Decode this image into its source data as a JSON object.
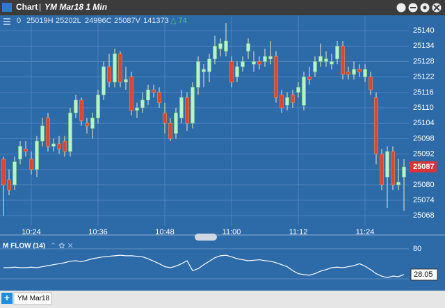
{
  "window_title": "Chart",
  "tab": "YM Mar18",
  "chart_data": [
    {
      "type": "candlestick",
      "title": "YM Mar18 1 Min",
      "info": [
        "0",
        "25019H",
        "25202L",
        "24996C",
        "25087V",
        "141373"
      ],
      "change": "△ 74",
      "up_color": "#b9f2c9",
      "down_color": "#e0452b",
      "last_color": "#d9343a",
      "categories": [
        null,
        null,
        null,
        null,
        null,
        "10:24",
        null,
        null,
        null,
        null,
        null,
        null,
        null,
        null,
        null,
        null,
        null,
        "10:36",
        null,
        null,
        null,
        null,
        null,
        null,
        null,
        null,
        null,
        null,
        null,
        "10:48",
        null,
        null,
        null,
        null,
        null,
        null,
        null,
        null,
        null,
        null,
        null,
        "11:00",
        null,
        null,
        null,
        null,
        null,
        null,
        null,
        null,
        null,
        null,
        null,
        "11:12",
        null,
        null,
        null,
        null,
        null,
        null,
        null,
        null,
        null,
        null,
        null,
        "11:24",
        null,
        null,
        null,
        null,
        null,
        null,
        null
      ],
      "open": [
        25090,
        25082,
        25080,
        25090,
        25094,
        25090,
        25086,
        25097,
        25106,
        25095,
        25096,
        25097,
        25093,
        25108,
        25113,
        25104,
        25102,
        25106,
        25115,
        25126,
        25120,
        25131,
        25120,
        25122,
        25109,
        25110,
        25113,
        25117,
        25116,
        25108,
        25104,
        25100,
        25106,
        25114,
        25104,
        25118,
        25124,
        25124,
        25129,
        25133,
        25132,
        25128,
        25122,
        25126,
        25132,
        25127,
        25128,
        25128,
        25129,
        25130,
        25115,
        25111,
        25115,
        25116,
        25111,
        25122,
        25124,
        25128,
        25128,
        25127,
        25129,
        25134,
        25124,
        25123,
        25125,
        25122,
        25122,
        25114,
        25092,
        25083,
        25093,
        25080,
        25083
      ],
      "high": [
        25091,
        25086,
        25091,
        25097,
        25097,
        25093,
        25099,
        25106,
        25108,
        25098,
        25099,
        25099,
        25110,
        25115,
        25114,
        25106,
        25108,
        25117,
        25128,
        25131,
        25133,
        25132,
        25126,
        25124,
        25112,
        25116,
        25119,
        25119,
        25118,
        25112,
        25106,
        25110,
        25117,
        25116,
        25120,
        25130,
        25127,
        25131,
        25138,
        25137,
        25143,
        25130,
        25128,
        25130,
        25137,
        25132,
        25130,
        25133,
        25136,
        25132,
        25117,
        25116,
        25117,
        25120,
        25124,
        25126,
        25130,
        25135,
        25132,
        25131,
        25136,
        25136,
        25126,
        25128,
        25127,
        25127,
        25124,
        25116,
        25094,
        25095,
        25095,
        25090,
        25090
      ],
      "low": [
        25068,
        25076,
        25078,
        25088,
        25091,
        25084,
        25083,
        25095,
        25093,
        25093,
        25092,
        25091,
        25091,
        25106,
        25103,
        25100,
        25098,
        25104,
        25113,
        25118,
        25118,
        25118,
        25117,
        25107,
        25106,
        25108,
        25111,
        25114,
        25110,
        25100,
        25097,
        25098,
        25104,
        25101,
        25102,
        25115,
        25118,
        25120,
        25127,
        25130,
        25130,
        25118,
        25120,
        25124,
        25129,
        25124,
        25125,
        25126,
        25127,
        25112,
        25108,
        25109,
        25110,
        25114,
        25109,
        25119,
        25122,
        25126,
        25126,
        25125,
        25127,
        25121,
        25121,
        25121,
        25122,
        25120,
        25115,
        25088,
        25078,
        25071,
        25078,
        25078,
        25070
      ],
      "close": [
        25080,
        25078,
        25089,
        25095,
        25093,
        25086,
        25097,
        25103,
        25095,
        25096,
        25094,
        25093,
        25108,
        25113,
        25105,
        25103,
        25106,
        25115,
        25126,
        25120,
        25131,
        25120,
        25121,
        25109,
        25110,
        25113,
        25117,
        25116,
        25112,
        25104,
        25098,
        25108,
        25114,
        25104,
        25118,
        25128,
        25125,
        25129,
        25134,
        25135,
        25136,
        25120,
        25126,
        25128,
        25135,
        25128,
        25127,
        25130,
        25130,
        25114,
        25110,
        25114,
        25112,
        25118,
        25122,
        25121,
        25128,
        25130,
        25129,
        25128,
        25134,
        25123,
        25123,
        25125,
        25124,
        25125,
        25117,
        25092,
        25080,
        25093,
        25080,
        25081,
        25087
      ],
      "ylim": [
        25064,
        25146
      ],
      "yticks": [
        25068,
        25074,
        25080,
        25086,
        25092,
        25098,
        25104,
        25110,
        25116,
        25122,
        25128,
        25134,
        25140
      ],
      "grid": true
    },
    {
      "type": "line",
      "title": "M FLOW (14)",
      "color": "#ffffff",
      "values": [
        42,
        42,
        43,
        42,
        42,
        43,
        42,
        44,
        46,
        48,
        50,
        52,
        55,
        56,
        54,
        57,
        60,
        62,
        64,
        65,
        66,
        67,
        66,
        66,
        65,
        64,
        60,
        55,
        50,
        44,
        42,
        45,
        50,
        56,
        36,
        40,
        48,
        55,
        62,
        66,
        67,
        64,
        60,
        58,
        56,
        57,
        58,
        56,
        55,
        52,
        48,
        44,
        36,
        30,
        28,
        27,
        30,
        35,
        38,
        42,
        43,
        42,
        44,
        46,
        50,
        45,
        38,
        30,
        25,
        22,
        25,
        24,
        28.05
      ],
      "ylim": [
        0,
        105
      ],
      "yticks": [
        80
      ],
      "grid": true
    }
  ]
}
